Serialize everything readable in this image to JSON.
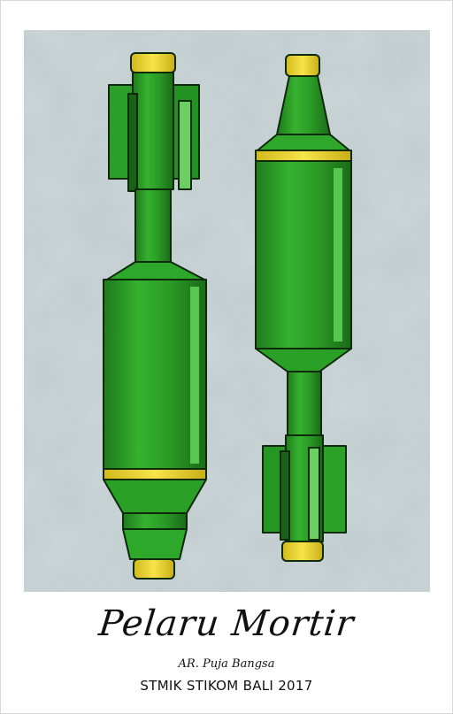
{
  "poster": {
    "title": "Pelaru Mortir",
    "author": "AR. Puja Bangsa",
    "institution": "STMIK STIKOM BALI 2017"
  },
  "artwork": {
    "subject": "two mortar shells",
    "colors": {
      "background": "#b7c3c7",
      "body_green": "#2fa52a",
      "body_dark": "#1d6f1a",
      "highlight": "#62d05a",
      "fuze_yellow": "#f1db2c",
      "outline": "#0d2a0b"
    }
  }
}
